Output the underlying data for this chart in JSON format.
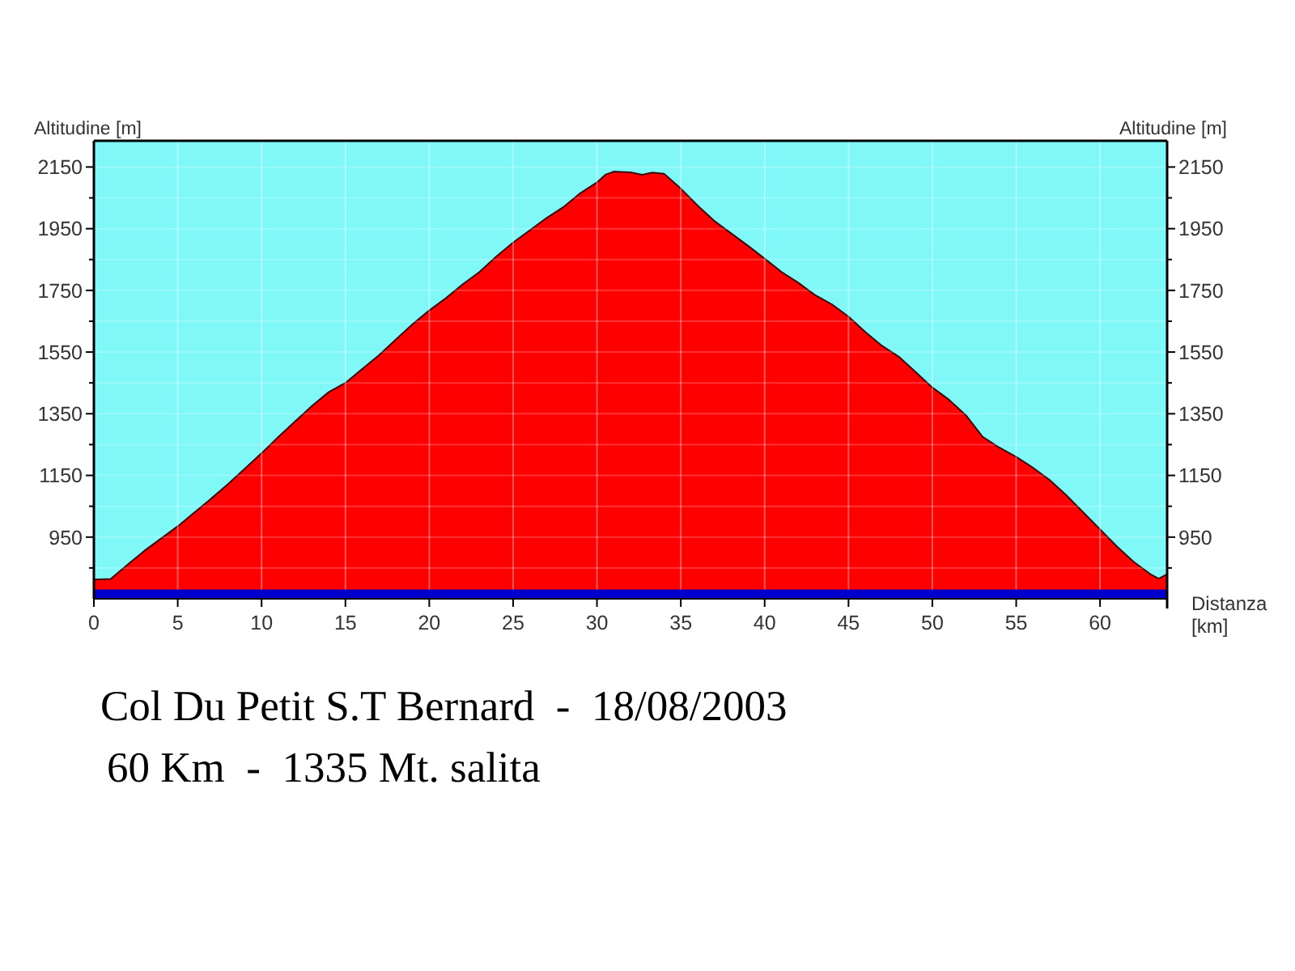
{
  "chart_data": {
    "type": "area",
    "title": "Col Du Petit S.T Bernard  -  18/08/2003",
    "subtitle": "60 Km  -  1335 Mt. salita",
    "xlabel": "Distanza [km]",
    "ylabel": "Altitudine [m]",
    "y2label": "Altitudine [m]",
    "x": [
      0,
      1,
      2,
      3,
      4,
      5,
      6,
      7,
      8,
      9,
      10,
      11,
      12,
      13,
      14,
      15,
      16,
      17,
      18,
      19,
      20,
      21,
      22,
      23,
      24,
      25,
      26,
      27,
      28,
      29,
      30,
      30.5,
      31,
      32,
      32.7,
      33.3,
      34,
      35,
      36,
      37,
      38,
      39,
      40,
      41,
      42,
      43,
      44,
      45,
      46,
      47,
      48,
      49,
      50,
      51,
      52,
      53,
      54,
      55,
      56,
      57,
      58,
      59,
      60,
      61,
      62,
      63,
      63.5,
      64
    ],
    "series": [
      {
        "color": "#ff0000",
        "values": [
          812,
          814,
          860,
          905,
          945,
          985,
          1030,
          1075,
          1122,
          1172,
          1222,
          1275,
          1325,
          1375,
          1420,
          1450,
          1495,
          1540,
          1590,
          1640,
          1685,
          1725,
          1770,
          1810,
          1860,
          1905,
          1945,
          1985,
          2020,
          2065,
          2100,
          2125,
          2135,
          2133,
          2125,
          2132,
          2128,
          2080,
          2025,
          1975,
          1935,
          1895,
          1853,
          1810,
          1775,
          1735,
          1705,
          1665,
          1615,
          1570,
          1535,
          1485,
          1435,
          1395,
          1345,
          1275,
          1240,
          1210,
          1175,
          1135,
          1085,
          1030,
          975,
          920,
          870,
          830,
          815,
          830
        ]
      }
    ],
    "xlim": [
      0,
      64
    ],
    "xticks": [
      0,
      5,
      10,
      15,
      20,
      25,
      30,
      35,
      40,
      45,
      50,
      55,
      60
    ],
    "ylim": [
      750,
      2235
    ],
    "yticks": [
      {
        "value": 850,
        "label": null
      },
      950,
      {
        "value": 1050,
        "label": null
      },
      1150,
      {
        "value": 1250,
        "label": null
      },
      1350,
      {
        "value": 1450,
        "label": null
      },
      1550,
      {
        "value": 1650,
        "label": null
      },
      1750,
      {
        "value": 1850,
        "label": null
      },
      1950,
      {
        "value": 2050,
        "label": null
      },
      2150
    ],
    "y2lim": [
      750,
      2235
    ],
    "y2ticks": [
      {
        "value": 850,
        "label": null
      },
      950,
      {
        "value": 1050,
        "label": null
      },
      1150,
      {
        "value": 1250,
        "label": null
      },
      1350,
      {
        "value": 1450,
        "label": null
      },
      1550,
      {
        "value": 1650,
        "label": null
      },
      1750,
      {
        "value": 1850,
        "label": null
      },
      1950,
      {
        "value": 2050,
        "label": null
      },
      2150
    ],
    "grid": true,
    "bands": [
      {
        "axis": "y",
        "from": 750,
        "to": 780,
        "color": "#0000cc"
      }
    ]
  }
}
